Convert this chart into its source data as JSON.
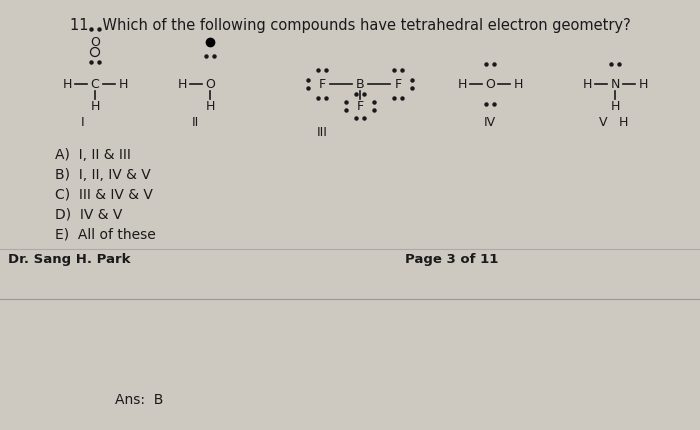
{
  "bg_color": "#cdc8c0",
  "text_color": "#1a1a1a",
  "title": "11.  Which of the following compounds have tetrahedral electron geometry?",
  "title_fontsize": 10.5,
  "choices": [
    "A)  I, II & III",
    "B)  I, II, IV & V",
    "C)  III & IV & V",
    "D)  IV & V",
    "E)  All of these"
  ],
  "footer_left": "Dr. Sang H. Park",
  "footer_right": "Page 3 of 11",
  "answer": "Ans:  B"
}
